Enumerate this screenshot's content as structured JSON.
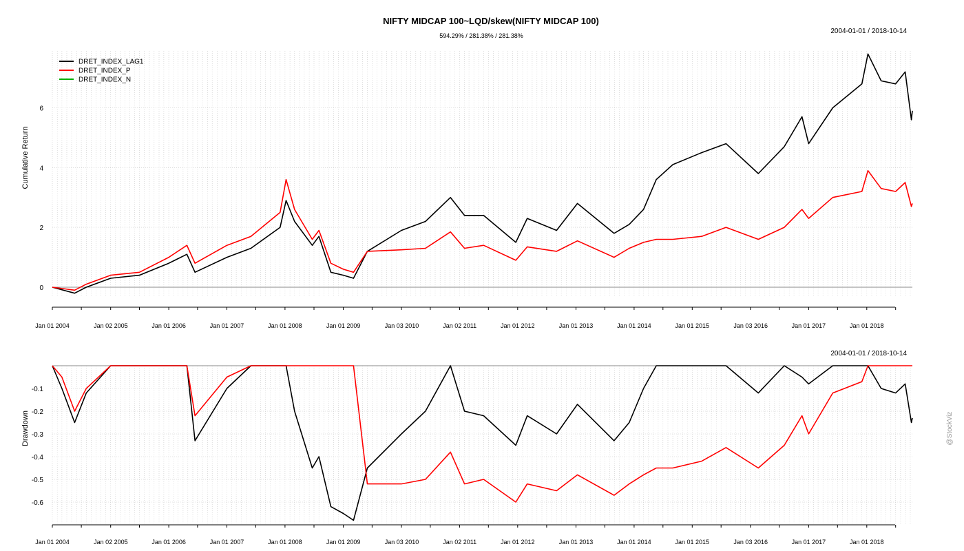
{
  "chart_data": [
    {
      "type": "line",
      "title": "NIFTY MIDCAP 100~LQD/skew(NIFTY MIDCAP 100)",
      "subtitle": "594.29% / 281.38% / 281.38%",
      "date_range": "2004-01-01 / 2018-10-14",
      "ylabel": "Cumulative Return",
      "xlim": [
        "2004-01-01",
        "2018-10-14"
      ],
      "ylim": [
        -0.3,
        7.9
      ],
      "yticks": [
        0,
        2,
        4,
        6
      ],
      "xtick_labels": [
        "Jan 01 2004",
        "Jan 02 2005",
        "Jan 01 2006",
        "Jan 01 2007",
        "Jan 01 2008",
        "Jan 01 2009",
        "Jan 03 2010",
        "Jan 02 2011",
        "Jan 01 2012",
        "Jan 01 2013",
        "Jan 01 2014",
        "Jan 01 2015",
        "Jan 03 2016",
        "Jan 01 2017",
        "Jan 01 2018"
      ],
      "grid": true,
      "legend_position": "top-left",
      "series": [
        {
          "name": "DRET_INDEX_LAG1",
          "color": "#000000",
          "x": [
            "2004-01-01",
            "2004-05-20",
            "2004-08-01",
            "2005-01-01",
            "2005-07-01",
            "2006-01-01",
            "2006-04-25",
            "2006-06-15",
            "2007-01-01",
            "2007-06-01",
            "2007-12-01",
            "2008-01-08",
            "2008-03-01",
            "2008-06-20",
            "2008-08-01",
            "2008-10-15",
            "2009-01-01",
            "2009-03-06",
            "2009-06-01",
            "2010-01-01",
            "2010-06-01",
            "2010-11-05",
            "2011-02-01",
            "2011-06-01",
            "2011-12-20",
            "2012-03-01",
            "2012-09-01",
            "2013-01-10",
            "2013-08-28",
            "2013-12-01",
            "2014-03-01",
            "2014-05-20",
            "2014-09-01",
            "2015-03-01",
            "2015-08-01",
            "2016-02-20",
            "2016-08-01",
            "2016-11-20",
            "2017-01-01",
            "2017-06-01",
            "2017-12-01",
            "2018-01-08",
            "2018-04-01",
            "2018-07-01",
            "2018-08-30",
            "2018-10-08",
            "2018-10-14"
          ],
          "values": [
            0.0,
            -0.2,
            0.0,
            0.3,
            0.4,
            0.8,
            1.1,
            0.5,
            1.0,
            1.3,
            2.0,
            2.9,
            2.2,
            1.4,
            1.7,
            0.5,
            0.4,
            0.3,
            1.2,
            1.9,
            2.2,
            3.0,
            2.4,
            2.4,
            1.5,
            2.3,
            1.9,
            2.8,
            1.8,
            2.1,
            2.6,
            3.6,
            4.1,
            4.5,
            4.8,
            3.8,
            4.7,
            5.7,
            4.8,
            6.0,
            6.8,
            7.8,
            6.9,
            6.8,
            7.2,
            5.6,
            5.9
          ]
        },
        {
          "name": "DRET_INDEX_P",
          "color": "#ff0000",
          "x": [
            "2004-01-01",
            "2004-05-20",
            "2004-08-01",
            "2005-01-01",
            "2005-07-01",
            "2006-01-01",
            "2006-04-25",
            "2006-06-15",
            "2007-01-01",
            "2007-06-01",
            "2007-12-01",
            "2008-01-08",
            "2008-03-01",
            "2008-06-20",
            "2008-08-01",
            "2008-10-15",
            "2009-01-01",
            "2009-03-06",
            "2009-06-01",
            "2010-01-01",
            "2010-06-01",
            "2010-11-05",
            "2011-02-01",
            "2011-06-01",
            "2011-12-20",
            "2012-03-01",
            "2012-09-01",
            "2013-01-10",
            "2013-08-28",
            "2013-12-01",
            "2014-03-01",
            "2014-05-20",
            "2014-09-01",
            "2015-03-01",
            "2015-08-01",
            "2016-02-20",
            "2016-08-01",
            "2016-11-20",
            "2017-01-01",
            "2017-06-01",
            "2017-12-01",
            "2018-01-08",
            "2018-04-01",
            "2018-07-01",
            "2018-08-30",
            "2018-10-08",
            "2018-10-14"
          ],
          "values": [
            0.0,
            -0.1,
            0.1,
            0.4,
            0.5,
            1.0,
            1.4,
            0.8,
            1.4,
            1.7,
            2.5,
            3.6,
            2.6,
            1.6,
            1.9,
            0.8,
            0.6,
            0.5,
            1.2,
            1.25,
            1.3,
            1.85,
            1.3,
            1.4,
            0.9,
            1.35,
            1.2,
            1.55,
            1.0,
            1.3,
            1.5,
            1.6,
            1.6,
            1.7,
            2.0,
            1.6,
            2.0,
            2.6,
            2.3,
            3.0,
            3.2,
            3.9,
            3.3,
            3.2,
            3.5,
            2.7,
            2.8
          ]
        },
        {
          "name": "DRET_INDEX_N",
          "color": "#00b000",
          "x": [],
          "values": []
        }
      ]
    },
    {
      "type": "line",
      "date_range": "2004-01-01 / 2018-10-14",
      "ylabel": "Drawdown",
      "xlim": [
        "2004-01-01",
        "2018-10-14"
      ],
      "ylim": [
        -0.7,
        0.0
      ],
      "yticks": [
        -0.1,
        -0.2,
        -0.3,
        -0.4,
        -0.5,
        -0.6
      ],
      "ytick_labels": [
        "-0.1",
        "-0.2",
        "-0.3",
        "-0.4",
        "-0.5",
        "-0.6"
      ],
      "xtick_labels": [
        "Jan 01 2004",
        "Jan 02 2005",
        "Jan 01 2006",
        "Jan 01 2007",
        "Jan 01 2008",
        "Jan 01 2009",
        "Jan 03 2010",
        "Jan 02 2011",
        "Jan 01 2012",
        "Jan 01 2013",
        "Jan 01 2014",
        "Jan 01 2015",
        "Jan 03 2016",
        "Jan 01 2017",
        "Jan 01 2018"
      ],
      "grid": true,
      "series": [
        {
          "name": "DRET_INDEX_LAG1",
          "color": "#000000",
          "x": [
            "2004-01-01",
            "2004-03-01",
            "2004-05-20",
            "2004-08-01",
            "2005-01-01",
            "2005-07-01",
            "2006-01-01",
            "2006-04-25",
            "2006-06-15",
            "2007-01-01",
            "2007-06-01",
            "2008-01-08",
            "2008-03-01",
            "2008-06-20",
            "2008-08-01",
            "2008-10-15",
            "2009-01-01",
            "2009-03-06",
            "2009-06-01",
            "2010-01-01",
            "2010-06-01",
            "2010-11-05",
            "2011-02-01",
            "2011-06-01",
            "2011-12-20",
            "2012-03-01",
            "2012-09-01",
            "2013-01-10",
            "2013-08-28",
            "2013-12-01",
            "2014-03-01",
            "2014-05-20",
            "2014-09-01",
            "2015-03-01",
            "2015-08-01",
            "2016-02-20",
            "2016-08-01",
            "2016-11-20",
            "2017-01-01",
            "2017-06-01",
            "2017-12-01",
            "2018-01-08",
            "2018-04-01",
            "2018-07-01",
            "2018-08-30",
            "2018-10-08",
            "2018-10-14"
          ],
          "values": [
            0.0,
            -0.1,
            -0.25,
            -0.12,
            0.0,
            0.0,
            0.0,
            0.0,
            -0.33,
            -0.1,
            0.0,
            0.0,
            -0.2,
            -0.45,
            -0.4,
            -0.62,
            -0.65,
            -0.68,
            -0.45,
            -0.3,
            -0.2,
            0.0,
            -0.2,
            -0.22,
            -0.35,
            -0.22,
            -0.3,
            -0.17,
            -0.33,
            -0.25,
            -0.1,
            0.0,
            0.0,
            0.0,
            0.0,
            -0.12,
            0.0,
            -0.05,
            -0.08,
            0.0,
            0.0,
            0.0,
            -0.1,
            -0.12,
            -0.08,
            -0.25,
            -0.23
          ]
        },
        {
          "name": "DRET_INDEX_P",
          "color": "#ff0000",
          "x": [
            "2004-01-01",
            "2004-03-01",
            "2004-05-20",
            "2004-08-01",
            "2005-01-01",
            "2005-07-01",
            "2006-01-01",
            "2006-04-25",
            "2006-06-15",
            "2007-01-01",
            "2007-06-01",
            "2008-01-08",
            "2008-03-01",
            "2008-06-20",
            "2008-08-01",
            "2008-10-15",
            "2009-01-01",
            "2009-03-06",
            "2009-06-01",
            "2010-01-01",
            "2010-06-01",
            "2010-11-05",
            "2011-02-01",
            "2011-06-01",
            "2011-12-20",
            "2012-03-01",
            "2012-09-01",
            "2013-01-10",
            "2013-08-28",
            "2013-12-01",
            "2014-03-01",
            "2014-05-20",
            "2014-09-01",
            "2015-03-01",
            "2015-08-01",
            "2016-02-20",
            "2016-08-01",
            "2016-11-20",
            "2017-01-01",
            "2017-06-01",
            "2017-12-01",
            "2018-01-08",
            "2018-04-01",
            "2018-07-01",
            "2018-08-30",
            "2018-10-08",
            "2018-10-14"
          ],
          "values": [
            0.0,
            -0.05,
            -0.2,
            -0.1,
            0.0,
            0.0,
            0.0,
            0.0,
            -0.22,
            -0.05,
            0.0,
            0.0,
            0.0,
            0.0,
            0.0,
            0.0,
            0.0,
            0.0,
            -0.52,
            -0.52,
            -0.5,
            -0.38,
            -0.52,
            -0.5,
            -0.6,
            -0.52,
            -0.55,
            -0.48,
            -0.57,
            -0.52,
            -0.48,
            -0.45,
            -0.45,
            -0.42,
            -0.36,
            -0.45,
            -0.35,
            -0.22,
            -0.3,
            -0.12,
            -0.07,
            0.0,
            0.0,
            0.0,
            0.0,
            0.0,
            0.0
          ]
        }
      ]
    }
  ],
  "watermark": "@StockViz"
}
